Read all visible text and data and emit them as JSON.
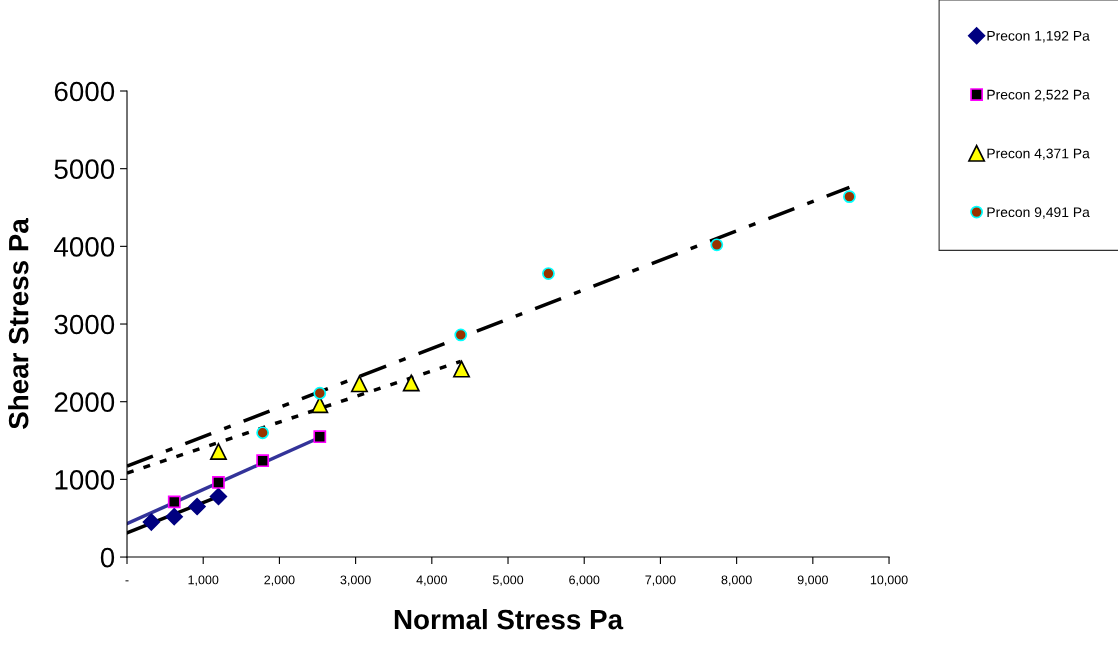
{
  "chart_data": {
    "type": "scatter",
    "xlabel": "Normal Stress Pa",
    "ylabel": "Shear Stress Pa",
    "xlim": [
      0,
      10000
    ],
    "ylim": [
      0,
      6000
    ],
    "xticks": [
      {
        "value": 0,
        "label": "-"
      },
      {
        "value": 1000,
        "label": "1,000"
      },
      {
        "value": 2000,
        "label": "2,000"
      },
      {
        "value": 3000,
        "label": "3,000"
      },
      {
        "value": 4000,
        "label": "4,000"
      },
      {
        "value": 5000,
        "label": "5,000"
      },
      {
        "value": 6000,
        "label": "6,000"
      },
      {
        "value": 7000,
        "label": "7,000"
      },
      {
        "value": 8000,
        "label": "8,000"
      },
      {
        "value": 9000,
        "label": "9,000"
      },
      {
        "value": 10000,
        "label": "10,000"
      }
    ],
    "yticks": [
      0,
      1000,
      2000,
      3000,
      4000,
      5000,
      6000
    ],
    "grid": false,
    "legend": "right",
    "series": [
      {
        "name": "Precon 1,192 Pa",
        "marker": "diamond",
        "color": "#000080",
        "x": [
          320,
          620,
          920,
          1200
        ],
        "values": [
          450,
          520,
          650,
          780
        ]
      },
      {
        "name": "Precon 2,522 Pa",
        "marker": "square",
        "color": "#000000",
        "x": [
          620,
          1200,
          1780,
          2530
        ],
        "values": [
          710,
          960,
          1240,
          1550
        ]
      },
      {
        "name": "Precon 4,371 Pa",
        "marker": "triangle",
        "color": "#ffff00",
        "x": [
          1200,
          2530,
          3050,
          3730,
          4390
        ],
        "values": [
          1360,
          1960,
          2230,
          2240,
          2420
        ]
      },
      {
        "name": "Precon 9,491 Pa",
        "marker": "circle",
        "color": "#993300",
        "x": [
          1780,
          2530,
          4380,
          5530,
          7740,
          9480
        ],
        "values": [
          1600,
          2110,
          2860,
          3650,
          4020,
          4640
        ]
      },
      {
        "type": "line",
        "line_style": "solid",
        "color": "#000000",
        "x": [
          0,
          1200
        ],
        "values": [
          310,
          780
        ]
      },
      {
        "type": "line",
        "line_style": "solid",
        "color": "#333399",
        "x": [
          0,
          2530
        ],
        "values": [
          430,
          1540
        ]
      },
      {
        "type": "line",
        "line_style": "dotted",
        "color": "#000000",
        "x": [
          0,
          4380
        ],
        "values": [
          1080,
          2520
        ]
      },
      {
        "type": "line",
        "line_style": "dashdot",
        "color": "#000000",
        "x": [
          0,
          9480
        ],
        "values": [
          1170,
          4760
        ]
      }
    ]
  }
}
